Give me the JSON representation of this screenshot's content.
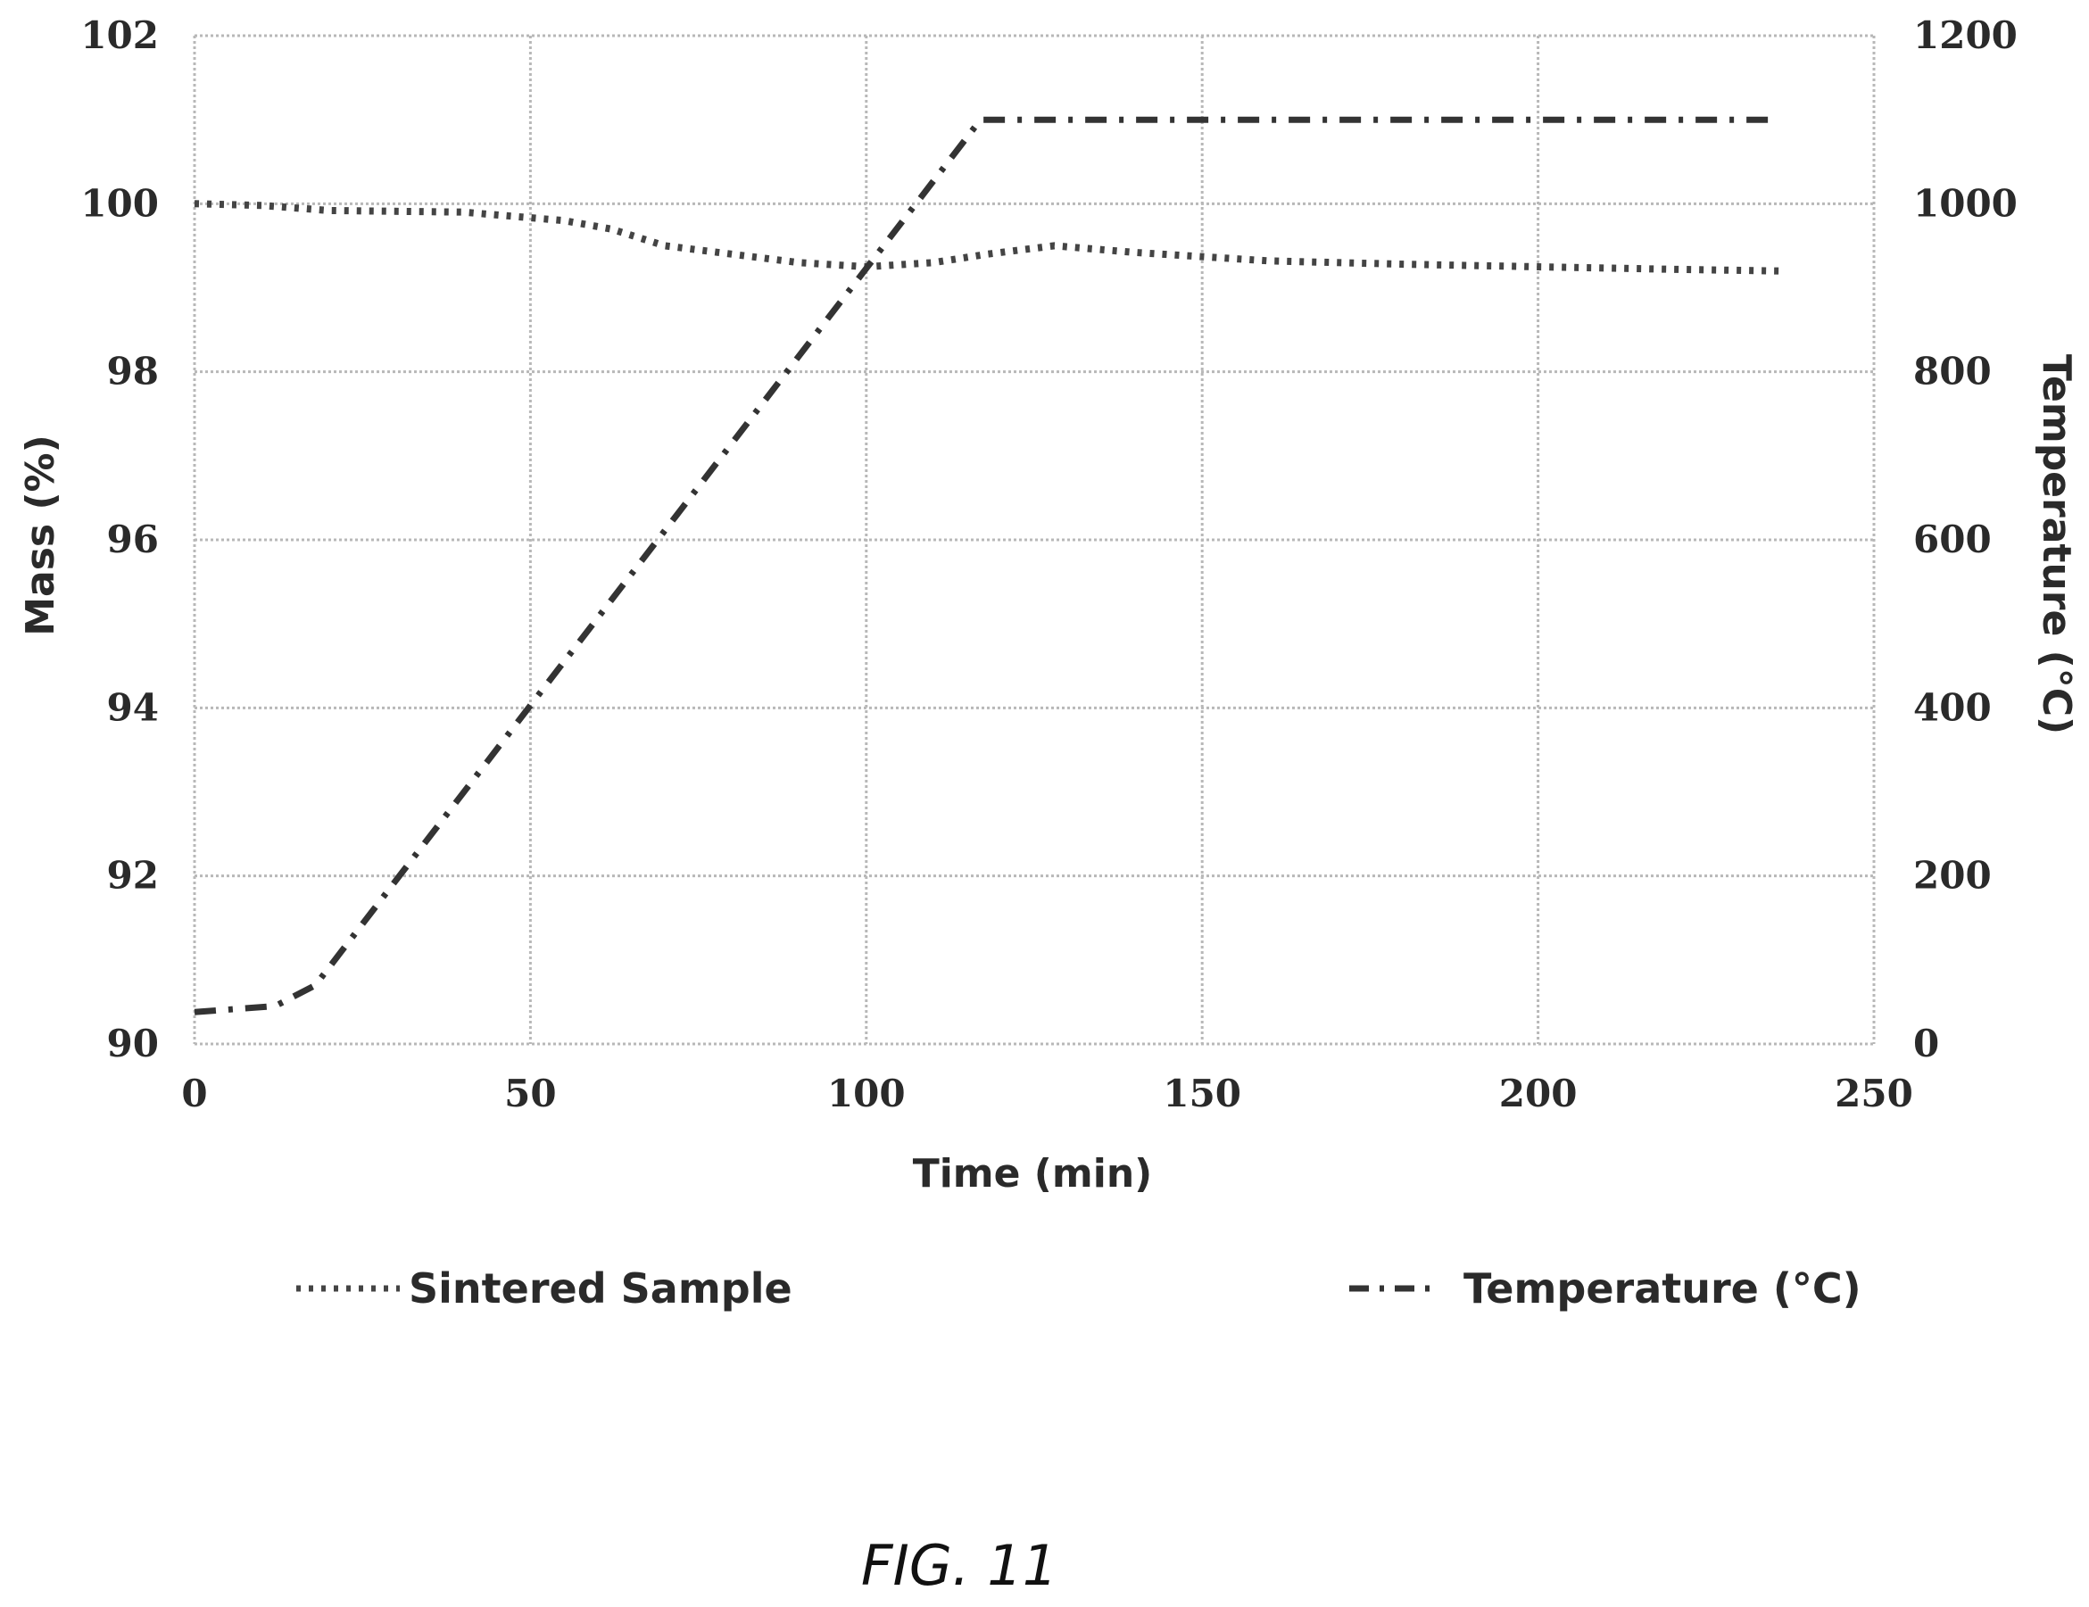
{
  "figure_label": "FIG. 11",
  "colors": {
    "grid": "#b8b8b8",
    "mass_series": "#444444",
    "temp_series": "#333333"
  },
  "chart_data": {
    "type": "line",
    "title": "",
    "xlabel": "Time (min)",
    "ylabel": "Mass (%)",
    "y2label": "Temperature (°C)",
    "xlim": [
      0,
      250
    ],
    "ylim": [
      90,
      102
    ],
    "y2lim": [
      0,
      1200
    ],
    "x_ticks": [
      "0",
      "50",
      "100",
      "150",
      "200",
      "250"
    ],
    "y_ticks": [
      "90",
      "92",
      "94",
      "96",
      "98",
      "100",
      "102"
    ],
    "y2_ticks": [
      "0",
      "200",
      "400",
      "600",
      "800",
      "1000",
      "1200"
    ],
    "grid": true,
    "legend_position": "bottom",
    "series": [
      {
        "name": "Sintered Sample",
        "axis": "left",
        "style": "dotted",
        "x": [
          0,
          10,
          20,
          40,
          55,
          62,
          70,
          80,
          90,
          100,
          110,
          118,
          128,
          140,
          160,
          180,
          200,
          220,
          236
        ],
        "y": [
          100.0,
          99.98,
          99.92,
          99.9,
          99.8,
          99.7,
          99.5,
          99.4,
          99.3,
          99.25,
          99.3,
          99.4,
          99.5,
          99.42,
          99.32,
          99.28,
          99.25,
          99.22,
          99.2
        ]
      },
      {
        "name": "Temperature (°C)",
        "axis": "right",
        "style": "dash-dot",
        "x": [
          0,
          12,
          18,
          117,
          150,
          200,
          236
        ],
        "y": [
          38,
          45,
          70,
          1100,
          1100,
          1100,
          1100
        ]
      }
    ]
  }
}
